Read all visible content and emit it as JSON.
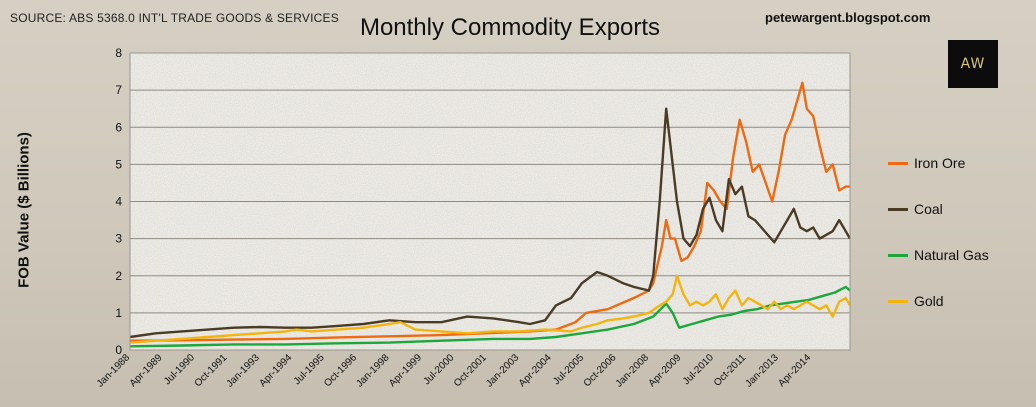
{
  "header": {
    "source": "SOURCE: ABS 5368.0 INT'L TRADE GOODS & SERVICES",
    "title": "Monthly Commodity Exports",
    "blog": "petewargent.blogspot.com",
    "logo_text": "AW"
  },
  "chart_data": {
    "type": "line",
    "title": "Monthly Commodity Exports",
    "xlabel": "",
    "ylabel": "FOB Value ($ Billions)",
    "ylim": [
      0,
      8
    ],
    "yticks": [
      "0",
      "1",
      "2",
      "3",
      "4",
      "5",
      "6",
      "7",
      "8"
    ],
    "x_tick_labels": [
      "Jan-1988",
      "Apr-1989",
      "Jul-1990",
      "Oct-1991",
      "Jan-1993",
      "Apr-1994",
      "Jul-1995",
      "Oct-1996",
      "Jan-1998",
      "Apr-1999",
      "Jul-2000",
      "Oct-2001",
      "Jan-2003",
      "Apr-2004",
      "Jul-2005",
      "Oct-2006",
      "Jan-2008",
      "Apr-2009",
      "Jul-2010",
      "Oct-2011",
      "Jan-2013",
      "Apr-2014"
    ],
    "x_start": "Jan-1988",
    "x_end": "Oct-2015",
    "grid": true,
    "legend_position": "right",
    "series": [
      {
        "name": "Iron Ore",
        "color": "#ee6a12",
        "points": [
          [
            "1988-01",
            0.25
          ],
          [
            "1990-01",
            0.26
          ],
          [
            "1992-01",
            0.28
          ],
          [
            "1994-01",
            0.3
          ],
          [
            "1996-01",
            0.34
          ],
          [
            "1998-01",
            0.37
          ],
          [
            "2000-01",
            0.4
          ],
          [
            "2002-01",
            0.46
          ],
          [
            "2003-06",
            0.5
          ],
          [
            "2004-06",
            0.55
          ],
          [
            "2005-03",
            0.75
          ],
          [
            "2005-08",
            1.0
          ],
          [
            "2006-06",
            1.1
          ],
          [
            "2007-06",
            1.4
          ],
          [
            "2008-01",
            1.6
          ],
          [
            "2008-03",
            1.8
          ],
          [
            "2008-07",
            2.8
          ],
          [
            "2008-09",
            3.5
          ],
          [
            "2008-11",
            3.0
          ],
          [
            "2009-01",
            3.0
          ],
          [
            "2009-04",
            2.4
          ],
          [
            "2009-07",
            2.5
          ],
          [
            "2009-10",
            2.8
          ],
          [
            "2010-01",
            3.2
          ],
          [
            "2010-04",
            4.5
          ],
          [
            "2010-07",
            4.3
          ],
          [
            "2010-10",
            4.0
          ],
          [
            "2011-01",
            3.8
          ],
          [
            "2011-04",
            5.2
          ],
          [
            "2011-07",
            6.2
          ],
          [
            "2011-10",
            5.6
          ],
          [
            "2012-01",
            4.8
          ],
          [
            "2012-04",
            5.0
          ],
          [
            "2012-07",
            4.5
          ],
          [
            "2012-10",
            4.0
          ],
          [
            "2013-01",
            4.8
          ],
          [
            "2013-04",
            5.8
          ],
          [
            "2013-07",
            6.2
          ],
          [
            "2013-10",
            6.8
          ],
          [
            "2013-12",
            7.2
          ],
          [
            "2014-02",
            6.5
          ],
          [
            "2014-05",
            6.3
          ],
          [
            "2014-08",
            5.5
          ],
          [
            "2014-11",
            4.8
          ],
          [
            "2015-02",
            5.0
          ],
          [
            "2015-05",
            4.3
          ],
          [
            "2015-08",
            4.4
          ],
          [
            "2015-10",
            4.4
          ]
        ]
      },
      {
        "name": "Coal",
        "color": "#4a3b25",
        "points": [
          [
            "1988-01",
            0.35
          ],
          [
            "1989-01",
            0.45
          ],
          [
            "1990-01",
            0.5
          ],
          [
            "1991-01",
            0.55
          ],
          [
            "1992-01",
            0.6
          ],
          [
            "1993-01",
            0.62
          ],
          [
            "1994-01",
            0.6
          ],
          [
            "1995-01",
            0.6
          ],
          [
            "1996-01",
            0.65
          ],
          [
            "1997-01",
            0.7
          ],
          [
            "1998-01",
            0.8
          ],
          [
            "1999-01",
            0.75
          ],
          [
            "2000-01",
            0.75
          ],
          [
            "2001-01",
            0.9
          ],
          [
            "2002-01",
            0.85
          ],
          [
            "2003-01",
            0.75
          ],
          [
            "2003-06",
            0.7
          ],
          [
            "2004-01",
            0.8
          ],
          [
            "2004-06",
            1.2
          ],
          [
            "2005-01",
            1.4
          ],
          [
            "2005-06",
            1.8
          ],
          [
            "2006-01",
            2.1
          ],
          [
            "2006-06",
            2.0
          ],
          [
            "2007-01",
            1.8
          ],
          [
            "2007-06",
            1.7
          ],
          [
            "2008-01",
            1.6
          ],
          [
            "2008-03",
            2.0
          ],
          [
            "2008-06",
            4.0
          ],
          [
            "2008-09",
            6.5
          ],
          [
            "2008-11",
            5.5
          ],
          [
            "2009-02",
            4.0
          ],
          [
            "2009-05",
            3.0
          ],
          [
            "2009-08",
            2.8
          ],
          [
            "2009-11",
            3.1
          ],
          [
            "2010-02",
            3.8
          ],
          [
            "2010-05",
            4.1
          ],
          [
            "2010-08",
            3.5
          ],
          [
            "2010-11",
            3.2
          ],
          [
            "2011-02",
            4.6
          ],
          [
            "2011-05",
            4.2
          ],
          [
            "2011-08",
            4.4
          ],
          [
            "2011-11",
            3.6
          ],
          [
            "2012-02",
            3.5
          ],
          [
            "2012-05",
            3.3
          ],
          [
            "2012-08",
            3.1
          ],
          [
            "2012-11",
            2.9
          ],
          [
            "2013-02",
            3.2
          ],
          [
            "2013-05",
            3.5
          ],
          [
            "2013-08",
            3.8
          ],
          [
            "2013-11",
            3.3
          ],
          [
            "2014-02",
            3.2
          ],
          [
            "2014-05",
            3.3
          ],
          [
            "2014-08",
            3.0
          ],
          [
            "2014-11",
            3.1
          ],
          [
            "2015-02",
            3.2
          ],
          [
            "2015-05",
            3.5
          ],
          [
            "2015-08",
            3.2
          ],
          [
            "2015-10",
            3.0
          ]
        ]
      },
      {
        "name": "Natural Gas",
        "color": "#1ea63c",
        "points": [
          [
            "1988-01",
            0.1
          ],
          [
            "1990-01",
            0.12
          ],
          [
            "1992-01",
            0.15
          ],
          [
            "1994-01",
            0.15
          ],
          [
            "1996-01",
            0.18
          ],
          [
            "1998-01",
            0.2
          ],
          [
            "2000-01",
            0.25
          ],
          [
            "2002-01",
            0.3
          ],
          [
            "2003-06",
            0.3
          ],
          [
            "2004-06",
            0.35
          ],
          [
            "2005-06",
            0.45
          ],
          [
            "2006-06",
            0.55
          ],
          [
            "2007-06",
            0.7
          ],
          [
            "2008-03",
            0.9
          ],
          [
            "2008-09",
            1.25
          ],
          [
            "2008-12",
            1.0
          ],
          [
            "2009-03",
            0.6
          ],
          [
            "2009-09",
            0.7
          ],
          [
            "2010-03",
            0.8
          ],
          [
            "2010-09",
            0.9
          ],
          [
            "2011-03",
            0.95
          ],
          [
            "2011-09",
            1.05
          ],
          [
            "2012-03",
            1.1
          ],
          [
            "2012-09",
            1.2
          ],
          [
            "2013-03",
            1.25
          ],
          [
            "2013-09",
            1.3
          ],
          [
            "2014-03",
            1.35
          ],
          [
            "2014-09",
            1.45
          ],
          [
            "2015-03",
            1.55
          ],
          [
            "2015-08",
            1.7
          ],
          [
            "2015-10",
            1.6
          ]
        ]
      },
      {
        "name": "Gold",
        "color": "#f2b50f",
        "points": [
          [
            "1988-01",
            0.2
          ],
          [
            "1989-01",
            0.25
          ],
          [
            "1990-01",
            0.3
          ],
          [
            "1991-01",
            0.35
          ],
          [
            "1992-01",
            0.4
          ],
          [
            "1993-01",
            0.45
          ],
          [
            "1994-01",
            0.5
          ],
          [
            "1994-06",
            0.55
          ],
          [
            "1995-01",
            0.5
          ],
          [
            "1996-01",
            0.55
          ],
          [
            "1997-01",
            0.6
          ],
          [
            "1998-01",
            0.7
          ],
          [
            "1998-06",
            0.75
          ],
          [
            "1999-01",
            0.55
          ],
          [
            "2000-01",
            0.5
          ],
          [
            "2001-01",
            0.45
          ],
          [
            "2002-01",
            0.5
          ],
          [
            "2003-01",
            0.5
          ],
          [
            "2004-01",
            0.55
          ],
          [
            "2005-01",
            0.5
          ],
          [
            "2005-06",
            0.6
          ],
          [
            "2006-01",
            0.7
          ],
          [
            "2006-06",
            0.8
          ],
          [
            "2007-01",
            0.85
          ],
          [
            "2007-06",
            0.9
          ],
          [
            "2008-01",
            1.0
          ],
          [
            "2008-06",
            1.2
          ],
          [
            "2008-09",
            1.3
          ],
          [
            "2008-12",
            1.5
          ],
          [
            "2009-02",
            2.0
          ],
          [
            "2009-05",
            1.5
          ],
          [
            "2009-08",
            1.2
          ],
          [
            "2009-11",
            1.3
          ],
          [
            "2010-02",
            1.2
          ],
          [
            "2010-05",
            1.3
          ],
          [
            "2010-08",
            1.5
          ],
          [
            "2010-11",
            1.1
          ],
          [
            "2011-02",
            1.4
          ],
          [
            "2011-05",
            1.6
          ],
          [
            "2011-08",
            1.2
          ],
          [
            "2011-11",
            1.4
          ],
          [
            "2012-02",
            1.3
          ],
          [
            "2012-05",
            1.2
          ],
          [
            "2012-08",
            1.1
          ],
          [
            "2012-11",
            1.3
          ],
          [
            "2013-02",
            1.1
          ],
          [
            "2013-05",
            1.2
          ],
          [
            "2013-08",
            1.1
          ],
          [
            "2013-11",
            1.2
          ],
          [
            "2014-02",
            1.3
          ],
          [
            "2014-05",
            1.2
          ],
          [
            "2014-08",
            1.1
          ],
          [
            "2014-11",
            1.2
          ],
          [
            "2015-02",
            0.9
          ],
          [
            "2015-05",
            1.3
          ],
          [
            "2015-08",
            1.4
          ],
          [
            "2015-10",
            1.2
          ]
        ]
      }
    ]
  }
}
